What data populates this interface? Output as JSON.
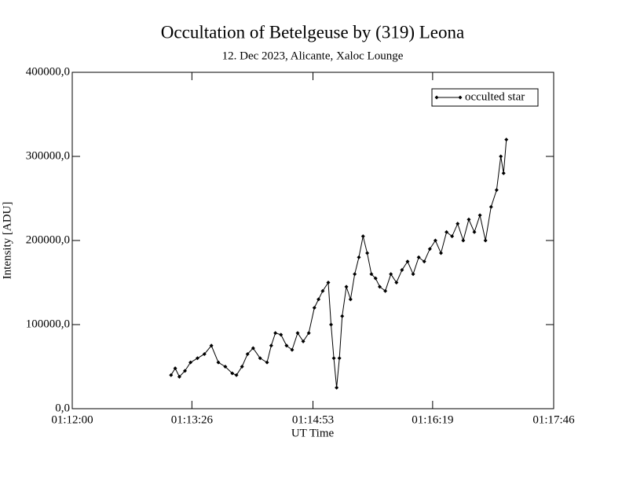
{
  "chart_data": {
    "type": "line",
    "title": "Occultation of Betelgeuse by (319) Leona",
    "subtitle": "12. Dec 2023, Alicante, Xaloc Lounge",
    "x_label": "UT Time",
    "y_label": "Intensity [ADU]",
    "xlim": [
      "01:12:00",
      "01:17:46"
    ],
    "xticks": [
      "01:12:00",
      "01:13:26",
      "01:14:53",
      "01:16:19",
      "01:17:46"
    ],
    "ylim": [
      0,
      400000
    ],
    "yticks": [
      {
        "value": 0,
        "label": "0,0"
      },
      {
        "value": 100000,
        "label": "100000,0"
      },
      {
        "value": 200000,
        "label": "200000,0"
      },
      {
        "value": 300000,
        "label": "300000,0"
      },
      {
        "value": 400000,
        "label": "400000,0"
      }
    ],
    "legend": "upper right",
    "x": [
      "01:13:11",
      "01:13:14",
      "01:13:17",
      "01:13:21",
      "01:13:25",
      "01:13:30",
      "01:13:35",
      "01:13:40",
      "01:13:45",
      "01:13:50",
      "01:13:55",
      "01:13:58",
      "01:14:02",
      "01:14:06",
      "01:14:10",
      "01:14:15",
      "01:14:20",
      "01:14:23",
      "01:14:26",
      "01:14:30",
      "01:14:34",
      "01:14:38",
      "01:14:42",
      "01:14:46",
      "01:14:50",
      "01:14:54",
      "01:14:57",
      "01:15:00",
      "01:15:04",
      "01:15:06",
      "01:15:08",
      "01:15:10",
      "01:15:12",
      "01:15:14",
      "01:15:17",
      "01:15:20",
      "01:15:23",
      "01:15:26",
      "01:15:29",
      "01:15:32",
      "01:15:35",
      "01:15:38",
      "01:15:41",
      "01:15:45",
      "01:15:49",
      "01:15:53",
      "01:15:57",
      "01:16:01",
      "01:16:05",
      "01:16:09",
      "01:16:13",
      "01:16:17",
      "01:16:21",
      "01:16:25",
      "01:16:29",
      "01:16:33",
      "01:16:37",
      "01:16:41",
      "01:16:45",
      "01:16:49",
      "01:16:53",
      "01:16:57",
      "01:17:01",
      "01:17:05",
      "01:17:08",
      "01:17:10",
      "01:17:12"
    ],
    "series": [
      {
        "name": "occulted star",
        "color": "#000000",
        "values": [
          40000,
          48000,
          38000,
          45000,
          55000,
          60000,
          65000,
          75000,
          55000,
          50000,
          42000,
          40000,
          50000,
          65000,
          72000,
          60000,
          55000,
          75000,
          90000,
          88000,
          75000,
          70000,
          90000,
          80000,
          90000,
          120000,
          130000,
          140000,
          150000,
          100000,
          60000,
          25000,
          60000,
          110000,
          145000,
          130000,
          160000,
          180000,
          205000,
          185000,
          160000,
          155000,
          145000,
          140000,
          160000,
          150000,
          165000,
          175000,
          160000,
          180000,
          175000,
          190000,
          200000,
          185000,
          210000,
          205000,
          220000,
          200000,
          225000,
          210000,
          230000,
          200000,
          240000,
          260000,
          300000,
          280000,
          320000
        ]
      }
    ]
  }
}
